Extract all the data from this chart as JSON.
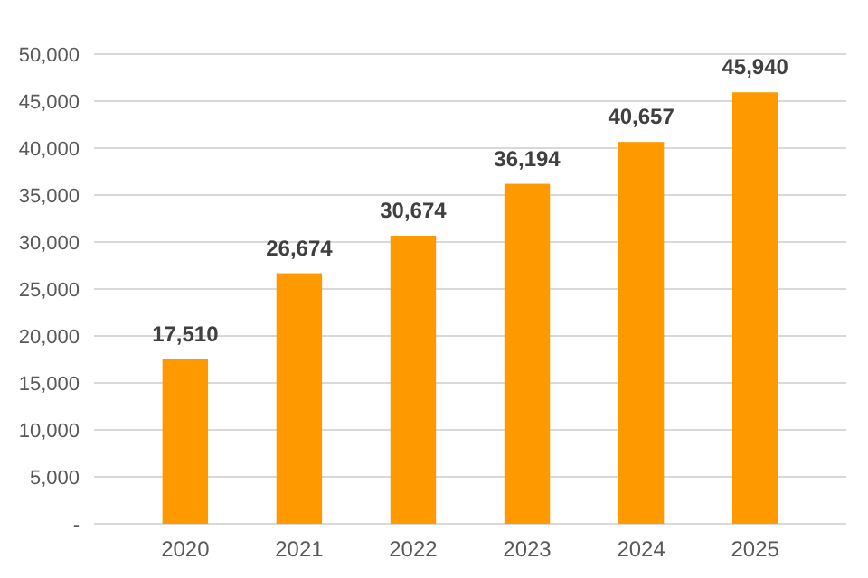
{
  "chart_data": {
    "type": "bar",
    "categories": [
      "2020",
      "2021",
      "2022",
      "2023",
      "2024",
      "2025"
    ],
    "values": [
      17510,
      26674,
      30674,
      36194,
      40657,
      45940
    ],
    "color": "#ff9900",
    "value_labels": [
      "17,510",
      "26,674",
      "30,674",
      "36,194",
      "40,657",
      "45,940"
    ],
    "ylim": [
      0,
      50000
    ],
    "yticks": [
      {
        "value": 0,
        "label": "-"
      },
      {
        "value": 5000,
        "label": "5,000"
      },
      {
        "value": 10000,
        "label": "10,000"
      },
      {
        "value": 15000,
        "label": "15,000"
      },
      {
        "value": 20000,
        "label": "20,000"
      },
      {
        "value": 25000,
        "label": "25,000"
      },
      {
        "value": 30000,
        "label": "30,000"
      },
      {
        "value": 35000,
        "label": "35,000"
      },
      {
        "value": 40000,
        "label": "40,000"
      },
      {
        "value": 45000,
        "label": "45,000"
      },
      {
        "value": 50000,
        "label": "50,000"
      }
    ],
    "grid": "y"
  }
}
